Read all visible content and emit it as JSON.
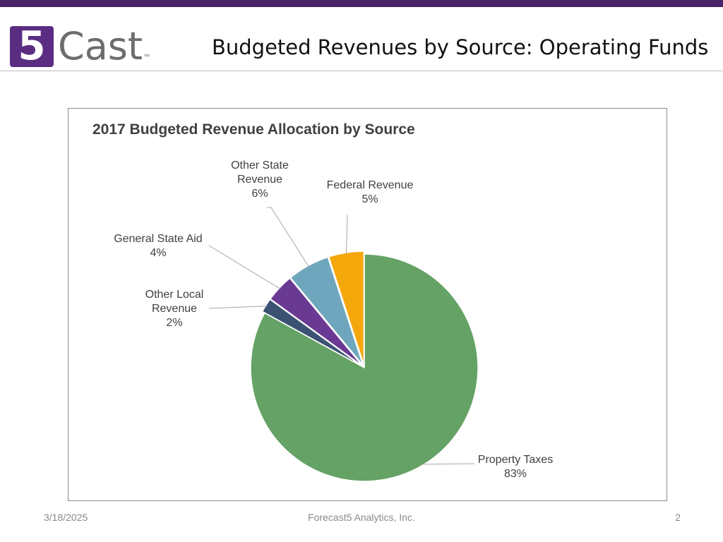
{
  "header": {
    "logo_mark": "5",
    "logo_text": "Cast",
    "logo_tm": "™",
    "slide_title": "Budgeted Revenues by Source: Operating Funds"
  },
  "colors": {
    "brand_purple": "#4b2369",
    "accent": "#5a2d82"
  },
  "chart_data": {
    "type": "pie",
    "title": "2017 Budgeted Revenue Allocation by Source",
    "start_angle_deg": 0,
    "direction": "clockwise",
    "slices": [
      {
        "label": "Property Taxes",
        "value": 83,
        "pct_label": "83%",
        "color": "#65a265",
        "label_lines": [
          "Property Taxes",
          "83%"
        ]
      },
      {
        "label": "Other Local Revenue",
        "value": 2,
        "pct_label": "2%",
        "color": "#3b5273",
        "label_lines": [
          "Other Local",
          "Revenue",
          "2%"
        ]
      },
      {
        "label": "General State Aid",
        "value": 4,
        "pct_label": "4%",
        "color": "#6a3a93",
        "label_lines": [
          "General State Aid",
          "4%"
        ]
      },
      {
        "label": "Other State Revenue",
        "value": 6,
        "pct_label": "6%",
        "color": "#6ea6bd",
        "label_lines": [
          "Other State",
          "Revenue",
          "6%"
        ]
      },
      {
        "label": "Federal Revenue",
        "value": 5,
        "pct_label": "5%",
        "color": "#f5a80c",
        "label_lines": [
          "Federal Revenue",
          "5%"
        ]
      }
    ]
  },
  "footer": {
    "date": "3/18/2025",
    "company": "Forecast5 Analytics, Inc.",
    "page": "2"
  }
}
